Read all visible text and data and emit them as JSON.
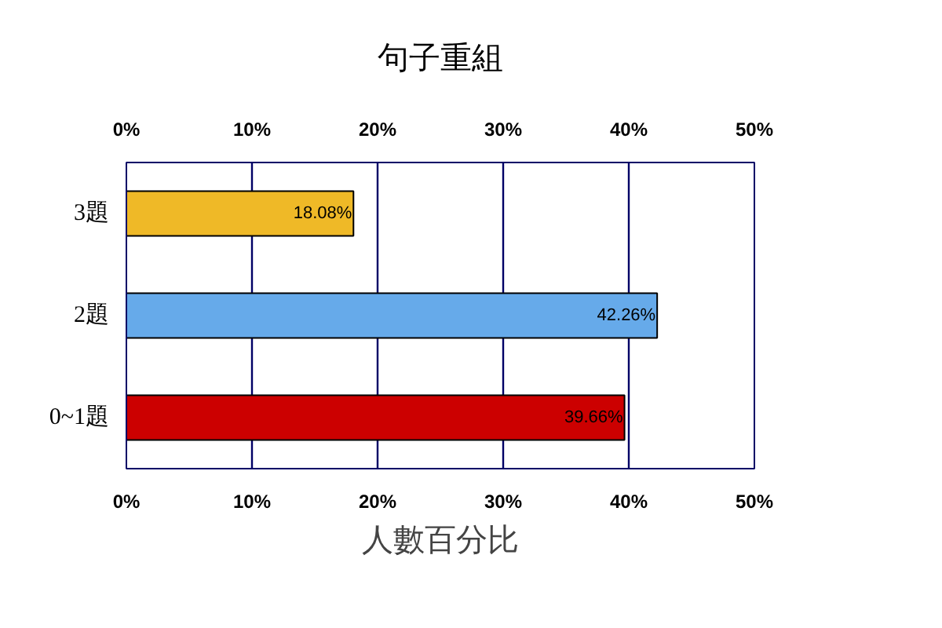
{
  "chart_data": {
    "type": "bar",
    "orientation": "horizontal",
    "title": "句子重組",
    "xlabel": "人數百分比",
    "categories": [
      "3題",
      "2題",
      "0~1題"
    ],
    "values": [
      18.08,
      42.26,
      39.66
    ],
    "colors": [
      "#efb927",
      "#66aaea",
      "#cc0000"
    ],
    "value_labels": [
      "18.08%",
      "42.26%",
      "39.66%"
    ],
    "xlim": [
      0,
      50
    ],
    "xticks": [
      {
        "value": 0,
        "label": "0%"
      },
      {
        "value": 10,
        "label": "10%"
      },
      {
        "value": 20,
        "label": "20%"
      },
      {
        "value": 30,
        "label": "30%"
      },
      {
        "value": 40,
        "label": "40%"
      },
      {
        "value": 50,
        "label": "50%"
      }
    ],
    "x2lim": [
      0,
      50
    ],
    "x2ticks": [
      {
        "value": 0,
        "label": "0%"
      },
      {
        "value": 10,
        "label": "10%"
      },
      {
        "value": 20,
        "label": "20%"
      },
      {
        "value": 30,
        "label": "30%"
      },
      {
        "value": 40,
        "label": "40%"
      },
      {
        "value": 50,
        "label": "50%"
      }
    ],
    "grid": "x"
  }
}
